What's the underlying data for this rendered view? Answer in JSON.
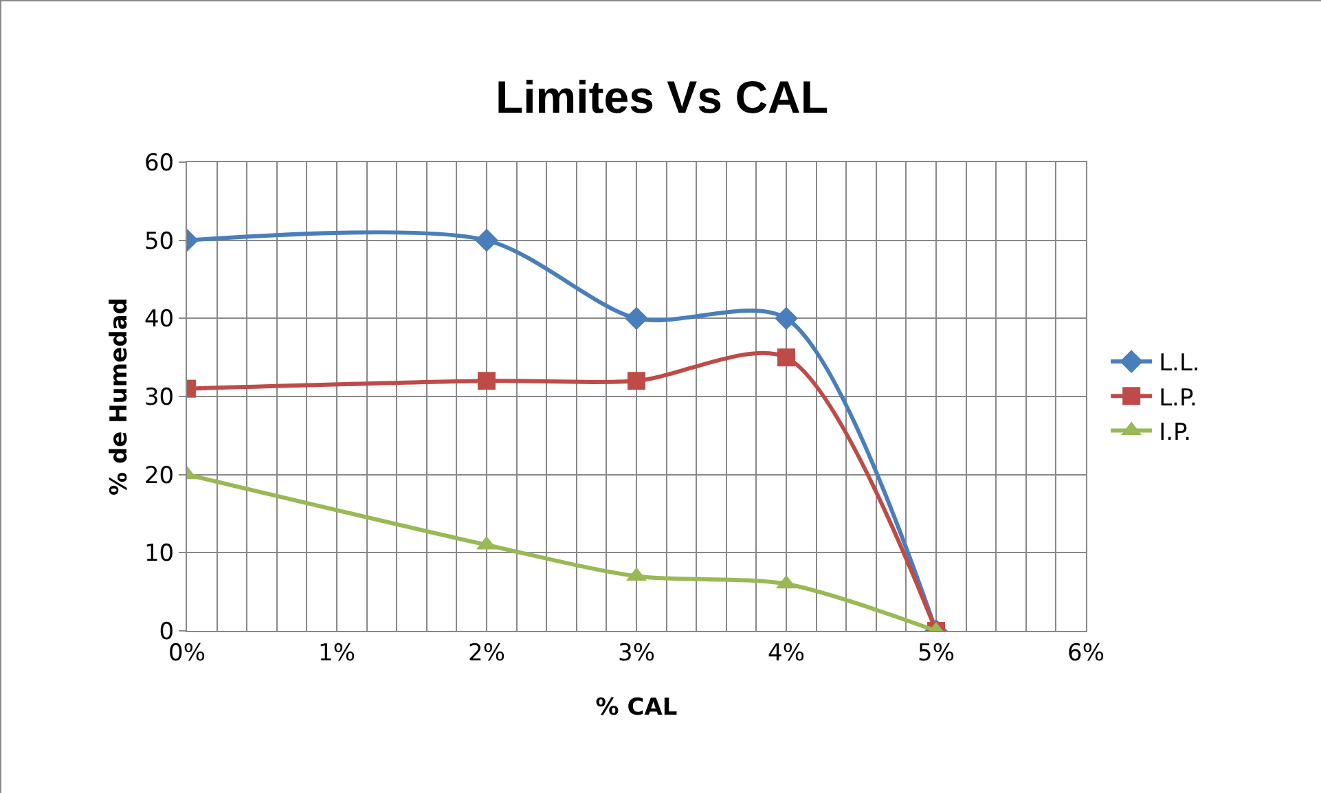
{
  "chart_data": {
    "type": "line",
    "title": "Limites Vs CAL",
    "xlabel": "% CAL",
    "ylabel": "% de Humedad",
    "x": [
      0,
      2,
      3,
      4,
      5
    ],
    "series": [
      {
        "name": "L.L.",
        "color": "#4a7ebb",
        "marker": "diamond",
        "values": [
          50,
          50,
          40,
          40,
          0
        ]
      },
      {
        "name": "L.P.",
        "color": "#be4b48",
        "marker": "square",
        "values": [
          31,
          32,
          32,
          35,
          0
        ]
      },
      {
        "name": "I.P.",
        "color": "#98b954",
        "marker": "triangle",
        "values": [
          20,
          11,
          7,
          6,
          0
        ]
      }
    ],
    "xlim": [
      0,
      6
    ],
    "xticks": [
      {
        "value": 0,
        "label": "0%"
      },
      {
        "value": 0.2,
        "label": null
      },
      {
        "value": 0.4,
        "label": null
      },
      {
        "value": 0.6,
        "label": null
      },
      {
        "value": 0.8,
        "label": null
      },
      {
        "value": 1,
        "label": "1%"
      },
      {
        "value": 1.2,
        "label": null
      },
      {
        "value": 1.4,
        "label": null
      },
      {
        "value": 1.6,
        "label": null
      },
      {
        "value": 1.8,
        "label": null
      },
      {
        "value": 2,
        "label": "2%"
      },
      {
        "value": 2.2,
        "label": null
      },
      {
        "value": 2.4,
        "label": null
      },
      {
        "value": 2.6,
        "label": null
      },
      {
        "value": 2.8,
        "label": null
      },
      {
        "value": 3,
        "label": "3%"
      },
      {
        "value": 3.2,
        "label": null
      },
      {
        "value": 3.4,
        "label": null
      },
      {
        "value": 3.6,
        "label": null
      },
      {
        "value": 3.8,
        "label": null
      },
      {
        "value": 4,
        "label": "4%"
      },
      {
        "value": 4.2,
        "label": null
      },
      {
        "value": 4.4,
        "label": null
      },
      {
        "value": 4.6,
        "label": null
      },
      {
        "value": 4.8,
        "label": null
      },
      {
        "value": 5,
        "label": "5%"
      },
      {
        "value": 5.2,
        "label": null
      },
      {
        "value": 5.4,
        "label": null
      },
      {
        "value": 5.6,
        "label": null
      },
      {
        "value": 5.8,
        "label": null
      },
      {
        "value": 6,
        "label": "6%"
      }
    ],
    "ylim": [
      0,
      60
    ],
    "yticks": [
      0,
      10,
      20,
      30,
      40,
      50,
      60
    ],
    "grid": true,
    "legend": "right",
    "line_style": "solid"
  }
}
